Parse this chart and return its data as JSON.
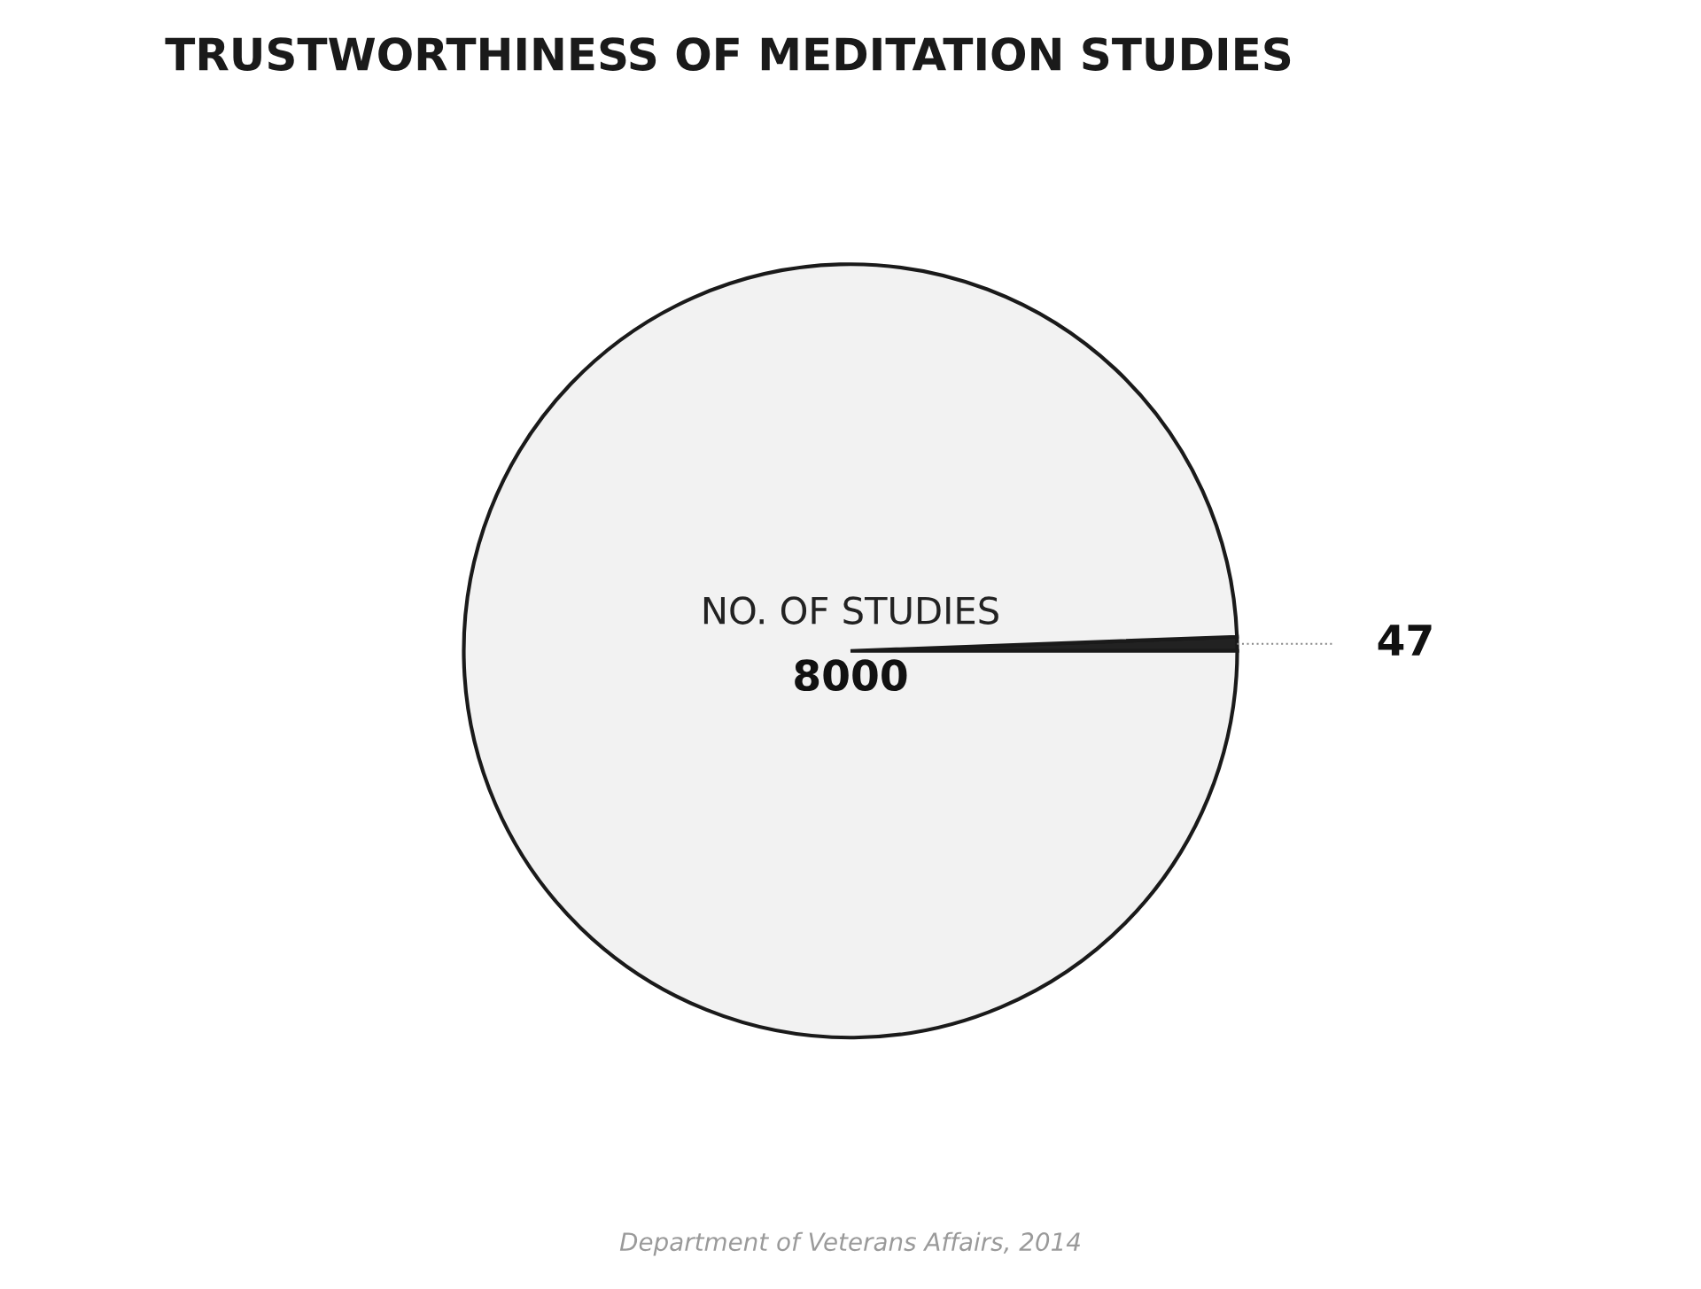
{
  "chart_data": {
    "type": "pie",
    "title": "TRUSTWORTHINESS OF MEDITATION STUDIES",
    "categories": [
      null,
      "NO. OF STUDIES"
    ],
    "values": [
      47,
      8000
    ],
    "colors": [
      "#222222",
      "#f2f2f2"
    ],
    "data_labels": true,
    "annotations": [
      "Department of Veterans Affairs, 2014"
    ]
  }
}
